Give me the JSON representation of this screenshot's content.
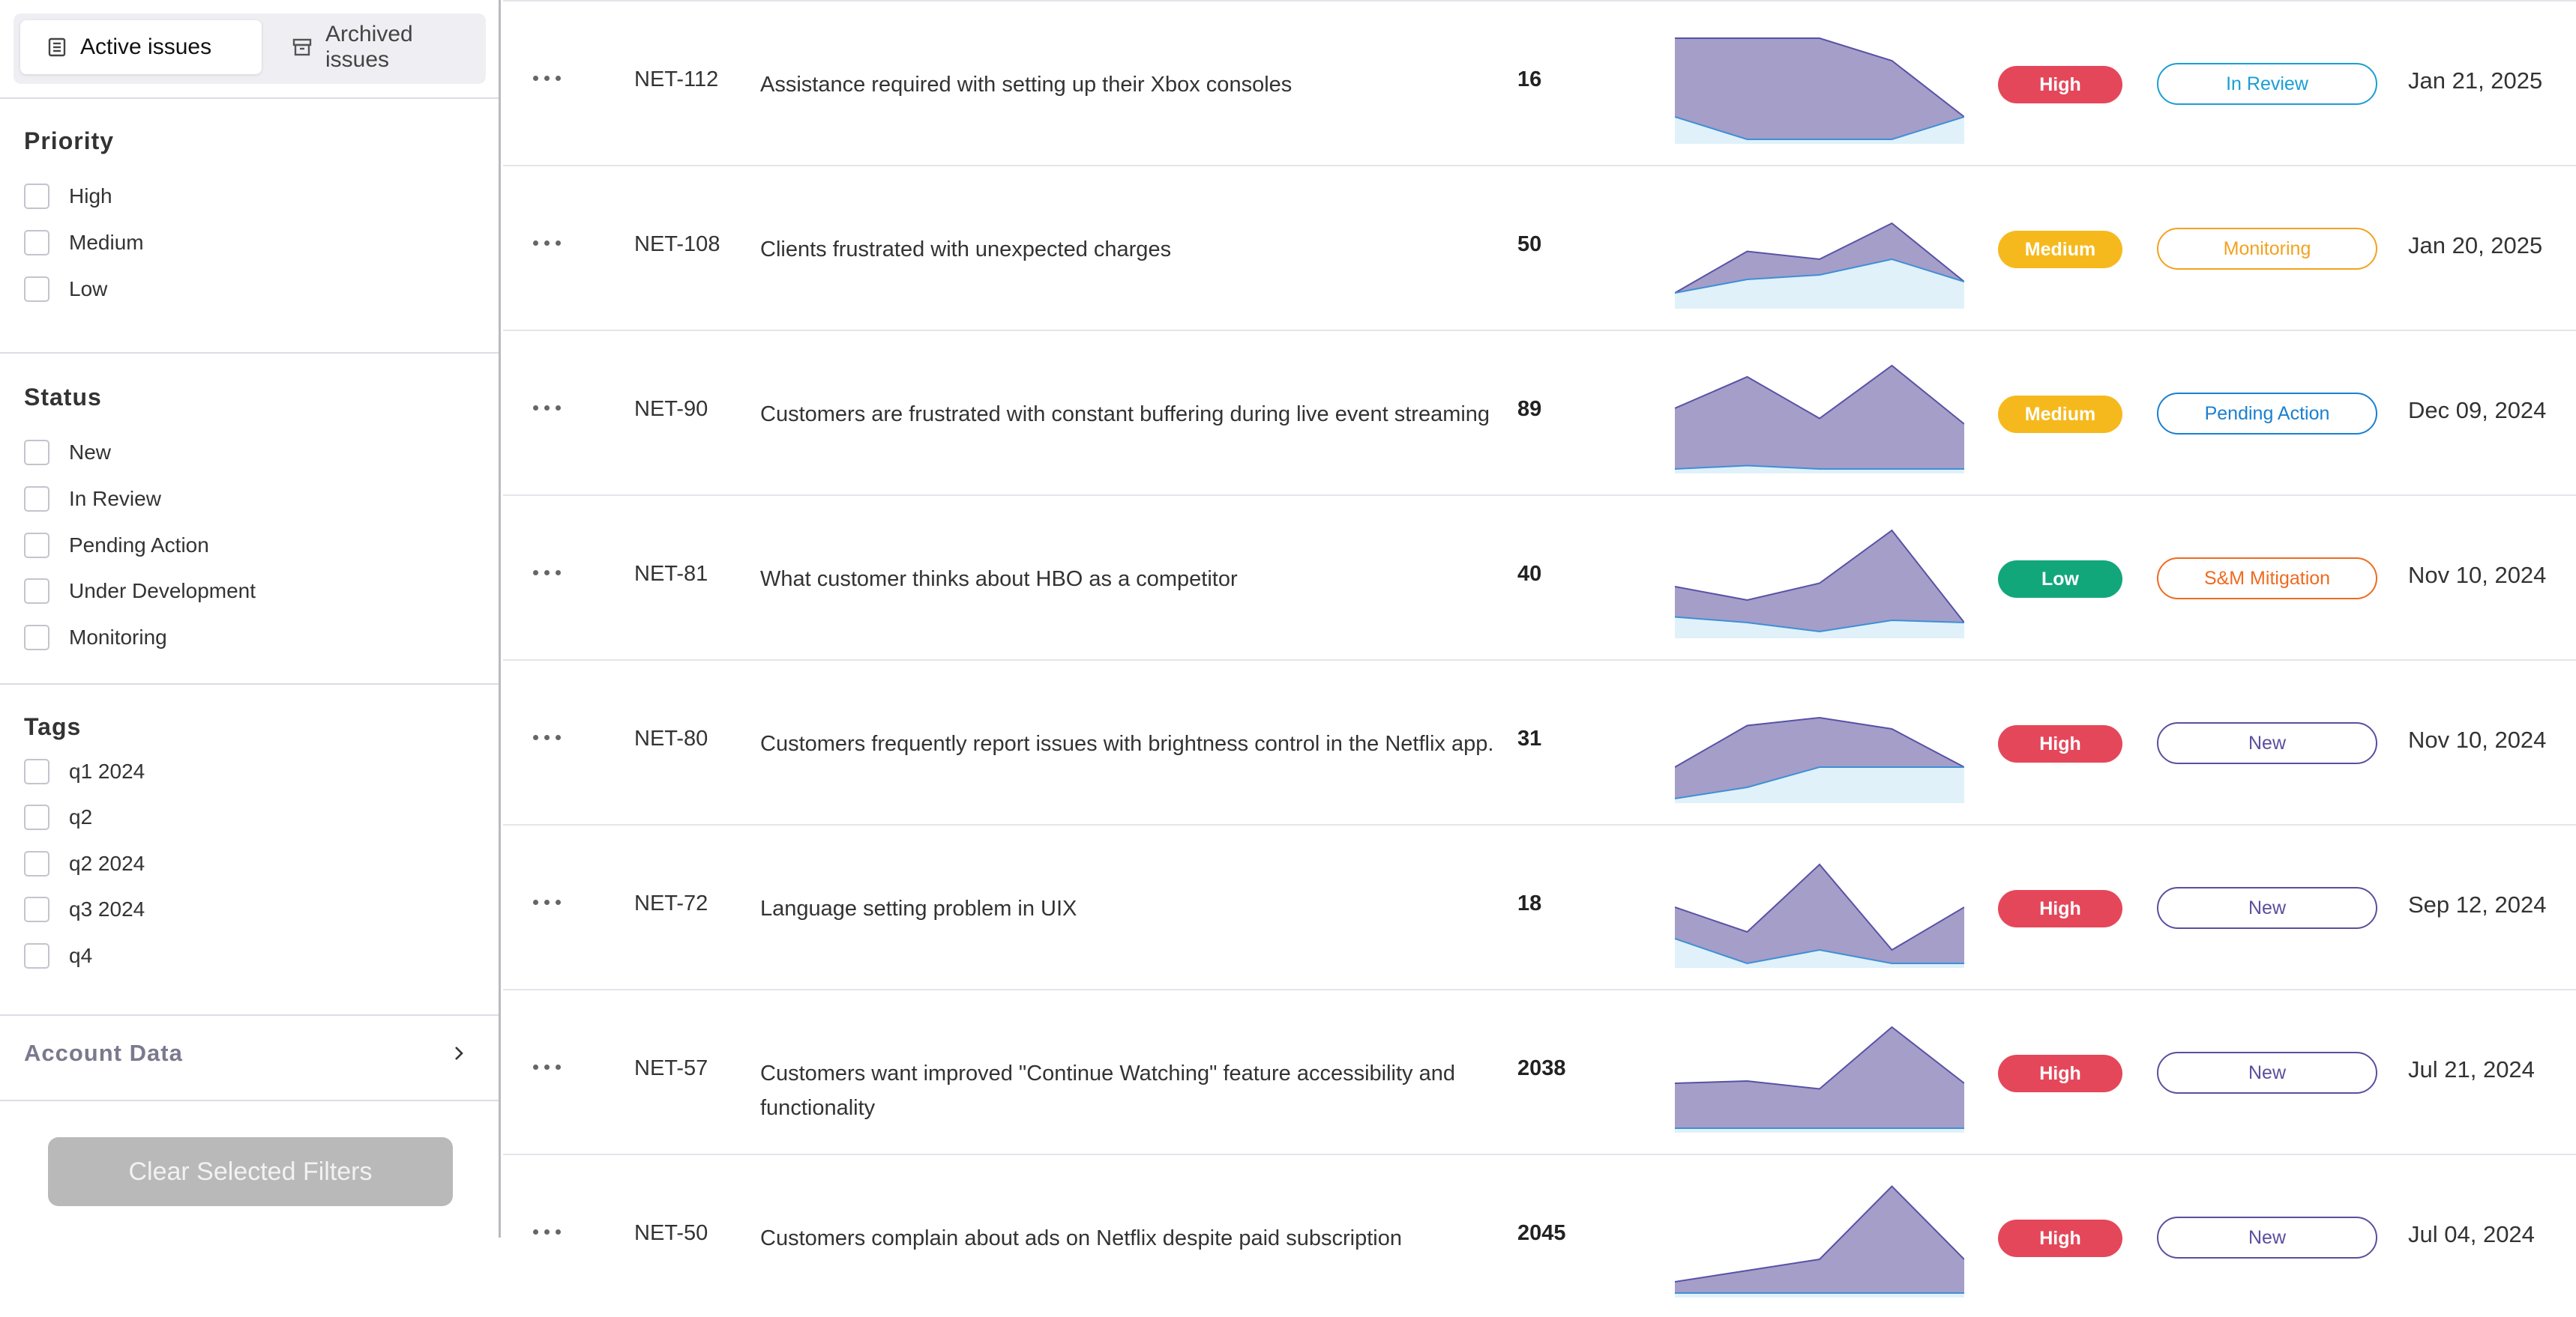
{
  "tabs": [
    {
      "label": "Active issues",
      "icon": "list-icon"
    },
    {
      "label": "Archived issues",
      "icon": "archive-icon"
    }
  ],
  "filters": {
    "priority": {
      "title": "Priority",
      "options": [
        "High",
        "Medium",
        "Low"
      ]
    },
    "status": {
      "title": "Status",
      "options": [
        "New",
        "In Review",
        "Pending Action",
        "Under Development",
        "Monitoring"
      ]
    },
    "tags": {
      "title": "Tags",
      "options": [
        "q1 2024",
        "q2",
        "q2 2024",
        "q3 2024",
        "q4"
      ]
    },
    "account": {
      "label": "Account Data"
    },
    "clear_label": "Clear Selected Filters"
  },
  "colors": {
    "priority": {
      "High": "#e5475a",
      "Medium": "#f6b91d",
      "Low": "#12a77b"
    },
    "status": {
      "In Review": "#1a9fd4",
      "Monitoring": "#f3a21f",
      "Pending Action": "#1a7fd0",
      "S&M Mitigation": "#ef6a20",
      "New": "#5a4f9e"
    },
    "spark_fill": "#a49ec9",
    "spark_line": "#5852a6",
    "spark_sub": "#d8eef8"
  },
  "issues": [
    {
      "id": "NET-112",
      "title": "Assistance required with setting up their Xbox consoles",
      "count": "16",
      "priority": "High",
      "status": "In Review",
      "date": "Jan 21, 2025",
      "trend": [
        0.9,
        0.9,
        0.9,
        0.7,
        0.2
      ],
      "trend2": [
        0.2,
        0.0,
        0.0,
        0.0,
        0.2
      ]
    },
    {
      "id": "NET-108",
      "title": "Clients frustrated with unexpected charges",
      "count": "50",
      "priority": "Medium",
      "status": "Monitoring",
      "date": "Jan 20, 2025",
      "trend": [
        0.1,
        0.47,
        0.4,
        0.72,
        0.2
      ],
      "trend2": [
        0.1,
        0.22,
        0.26,
        0.4,
        0.2
      ]
    },
    {
      "id": "NET-90",
      "title": "Customers are frustrated with constant buffering during live event streaming",
      "count": "89",
      "priority": "Medium",
      "status": "Pending Action",
      "date": "Dec 09, 2024",
      "trend": [
        0.54,
        0.82,
        0.45,
        0.92,
        0.4
      ],
      "trend2": [
        0.0,
        0.03,
        0.0,
        0.0,
        0.0
      ]
    },
    {
      "id": "NET-81",
      "title": "What customer thinks about HBO as a competitor",
      "count": "40",
      "priority": "Low",
      "status": "S&M Mitigation",
      "date": "Nov 10, 2024",
      "trend": [
        0.42,
        0.3,
        0.45,
        0.92,
        0.1
      ],
      "trend2": [
        0.15,
        0.1,
        0.02,
        0.12,
        0.1
      ]
    },
    {
      "id": "NET-80",
      "title": "Customers frequently report issues with brightness control in the Netflix app.",
      "count": "31",
      "priority": "High",
      "status": "New",
      "date": "Nov 10, 2024",
      "trend": [
        0.28,
        0.65,
        0.72,
        0.62,
        0.28
      ],
      "trend2": [
        0.0,
        0.1,
        0.28,
        0.28,
        0.28
      ]
    },
    {
      "id": "NET-72",
      "title": "Language setting problem in UIX",
      "count": "18",
      "priority": "High",
      "status": "New",
      "date": "Sep 12, 2024",
      "trend": [
        0.5,
        0.28,
        0.88,
        0.12,
        0.5
      ],
      "trend2": [
        0.22,
        0.0,
        0.12,
        0.0,
        0.0
      ]
    },
    {
      "id": "NET-57",
      "title": "Customers want improved \"Continue Watching\" feature accessibility and functionality",
      "count": "2038",
      "priority": "High",
      "status": "New",
      "date": "Jul 21, 2024",
      "trend": [
        0.4,
        0.42,
        0.35,
        0.9,
        0.4
      ],
      "trend2": [
        0.0,
        0.0,
        0.0,
        0.0,
        0.0
      ]
    },
    {
      "id": "NET-50",
      "title": "Customers complain about ads on Netflix despite paid subscription",
      "count": "2045",
      "priority": "High",
      "status": "New",
      "date": "Jul 04, 2024",
      "trend": [
        0.1,
        0.2,
        0.3,
        0.95,
        0.3
      ],
      "trend2": [
        0.0,
        0.0,
        0.0,
        0.0,
        0.0
      ]
    }
  ]
}
